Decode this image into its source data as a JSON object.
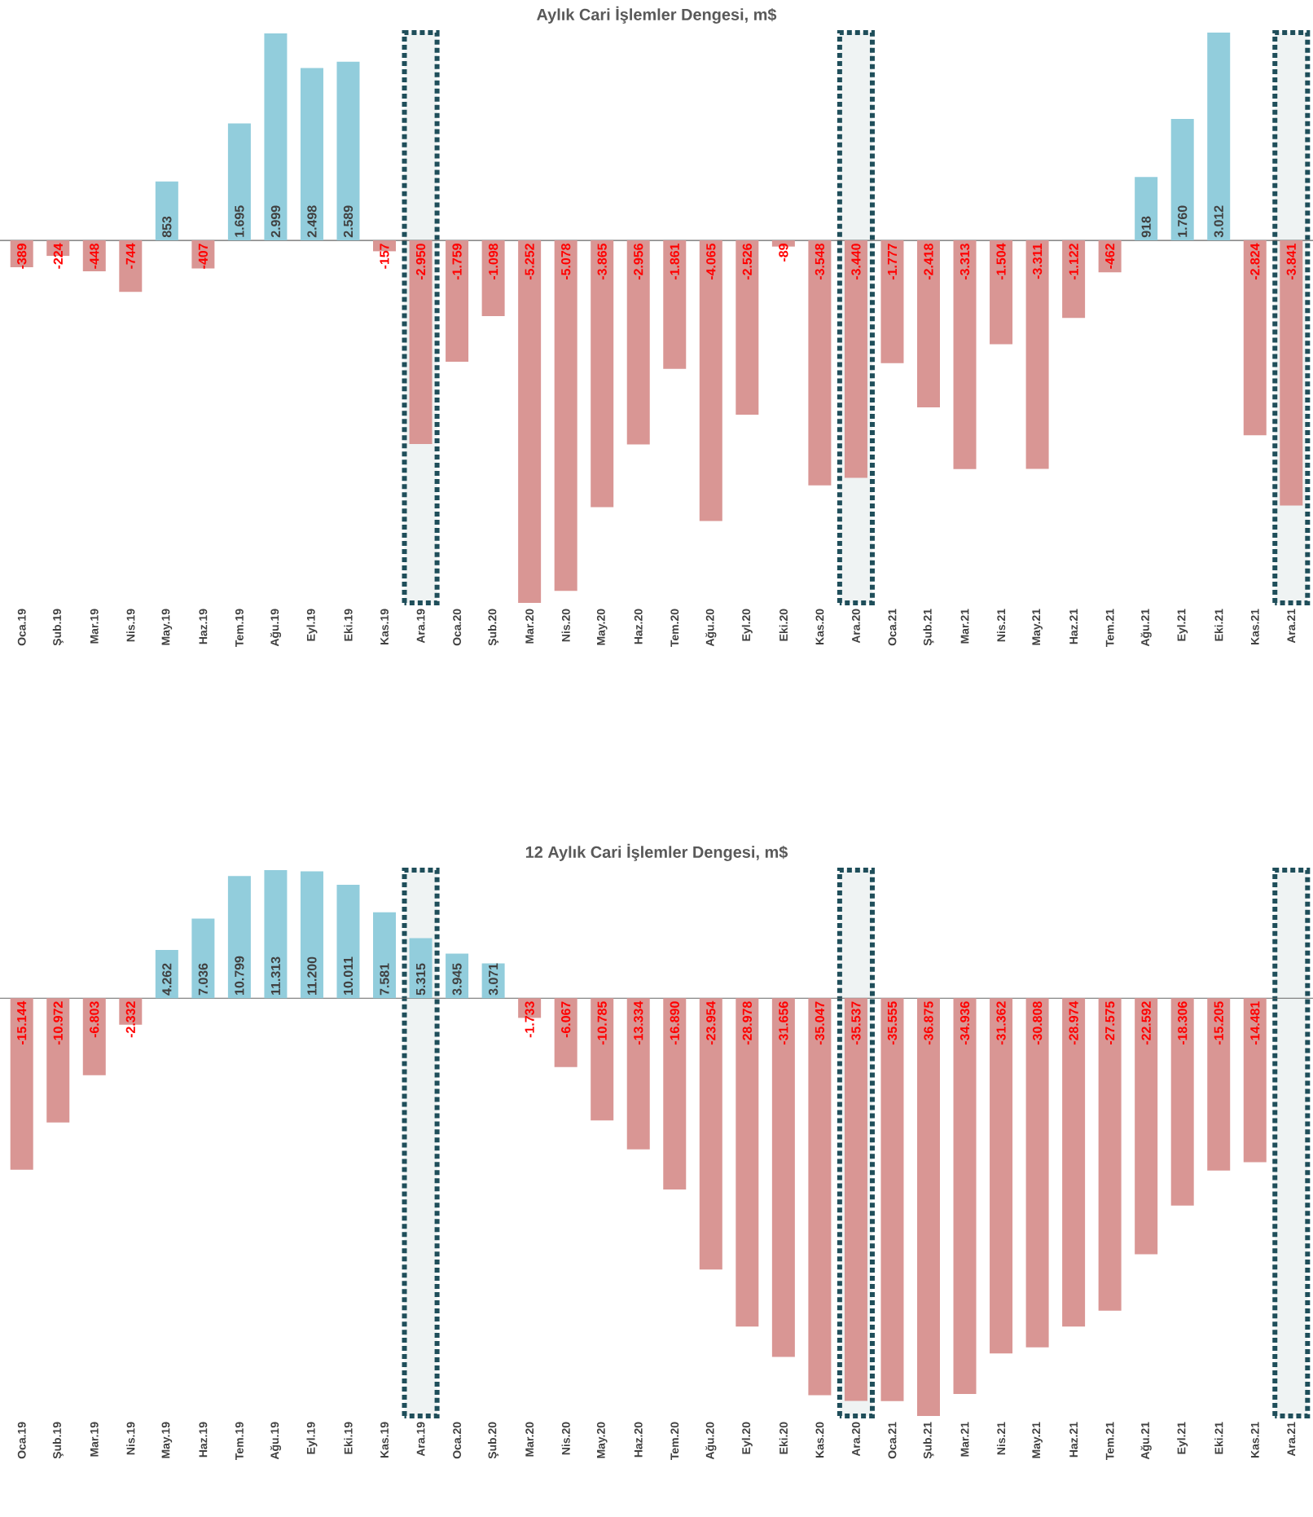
{
  "chart_data": [
    {
      "type": "bar",
      "title": "Aylık Cari İşlemler Dengesi, m$",
      "categories": [
        "Oca.19",
        "Şub.19",
        "Mar.19",
        "Nis.19",
        "May.19",
        "Haz.19",
        "Tem.19",
        "Ağu.19",
        "Eyl.19",
        "Eki.19",
        "Kas.19",
        "Ara.19",
        "Oca.20",
        "Şub.20",
        "Mar.20",
        "Nis.20",
        "May.20",
        "Haz.20",
        "Tem.20",
        "Ağu.20",
        "Eyl.20",
        "Eki.20",
        "Kas.20",
        "Ara.20",
        "Oca.21",
        "Şub.21",
        "Mar.21",
        "Nis.21",
        "May.21",
        "Haz.21",
        "Tem.21",
        "Ağu.21",
        "Eyl.21",
        "Eki.21",
        "Kas.21",
        "Ara.21"
      ],
      "values": [
        -389,
        -224,
        -448,
        -744,
        853,
        -407,
        1695,
        2999,
        2498,
        2589,
        -157,
        -2950,
        -1759,
        -1098,
        -5252,
        -5078,
        -3865,
        -2956,
        -1861,
        -4065,
        -2526,
        -89,
        -3548,
        -3440,
        -1777,
        -2418,
        -3313,
        -1504,
        -3311,
        -1122,
        -462,
        918,
        1760,
        3012,
        -2824,
        -3841
      ],
      "value_labels": [
        "-389",
        "-224",
        "-448",
        "-744",
        "853",
        "-407",
        "1.695",
        "2.999",
        "2.498",
        "2.589",
        "-157",
        "-2.950",
        "-1.759",
        "-1.098",
        "-5.252",
        "-5.078",
        "-3.865",
        "-2.956",
        "-1.861",
        "-4.065",
        "-2.526",
        "-89",
        "-3.548",
        "-3.440",
        "-1.777",
        "-2.418",
        "-3.313",
        "-1.504",
        "-3.311",
        "-1.122",
        "-462",
        "918",
        "1.760",
        "3.012",
        "-2.824",
        "-3.841"
      ],
      "colors": [
        "#d99694",
        "#d99694",
        "#d99694",
        "#d99694",
        "#92cddc",
        "#d99694",
        "#92cddc",
        "#92cddc",
        "#92cddc",
        "#92cddc",
        "#d99694",
        "#d99694",
        "#d99694",
        "#d99694",
        "#d99694",
        "#d99694",
        "#d99694",
        "#d99694",
        "#d99694",
        "#d99694",
        "#d99694",
        "#d99694",
        "#d99694",
        "#d99694",
        "#d99694",
        "#d99694",
        "#d99694",
        "#d99694",
        "#d99694",
        "#d99694",
        "#d99694",
        "#92cddc",
        "#92cddc",
        "#92cddc",
        "#d99694",
        "#d99694"
      ],
      "bands": [
        {
          "axis": "x",
          "from": "Ara.19",
          "to": "Ara.19",
          "color": "#1f4e5a"
        },
        {
          "axis": "x",
          "from": "Ara.20",
          "to": "Ara.20",
          "color": "#1f4e5a"
        },
        {
          "axis": "x",
          "from": "Ara.21",
          "to": "Ara.21",
          "color": "#1f4e5a"
        }
      ]
    },
    {
      "type": "bar",
      "title": "12 Aylık Cari İşlemler Dengesi, m$",
      "categories": [
        "Oca.19",
        "Şub.19",
        "Mar.19",
        "Nis.19",
        "May.19",
        "Haz.19",
        "Tem.19",
        "Ağu.19",
        "Eyl.19",
        "Eki.19",
        "Kas.19",
        "Ara.19",
        "Oca.20",
        "Şub.20",
        "Mar.20",
        "Nis.20",
        "May.20",
        "Haz.20",
        "Tem.20",
        "Ağu.20",
        "Eyl.20",
        "Eki.20",
        "Kas.20",
        "Ara.20",
        "Oca.21",
        "Şub.21",
        "Mar.21",
        "Nis.21",
        "May.21",
        "Haz.21",
        "Tem.21",
        "Ağu.21",
        "Eyl.21",
        "Eki.21",
        "Kas.21",
        "Ara.21"
      ],
      "values": [
        -15144,
        -10972,
        -6803,
        -2332,
        4262,
        7036,
        10799,
        11313,
        11200,
        10011,
        7581,
        5315,
        3945,
        3071,
        -1733,
        -6067,
        -10785,
        -13334,
        -16890,
        -23954,
        -28978,
        -31656,
        -35047,
        -35537,
        -35555,
        -36875,
        -34936,
        -31362,
        -30808,
        -28974,
        -27575,
        -22592,
        -18306,
        -15205,
        -14481,
        null
      ],
      "value_labels": [
        "-15.144",
        "-10.972",
        "-6.803",
        "-2.332",
        "4.262",
        "7.036",
        "10.799",
        "11.313",
        "11.200",
        "10.011",
        "7.581",
        "5.315",
        "3.945",
        "3.071",
        "-1.733",
        "-6.067",
        "-10.785",
        "-13.334",
        "-16.890",
        "-23.954",
        "-28.978",
        "-31.656",
        "-35.047",
        "-35.537",
        "-35.555",
        "-36.875",
        "-34.936",
        "-31.362",
        "-30.808",
        "-28.974",
        "-27.575",
        "-22.592",
        "-18.306",
        "-15.205",
        "-14.481",
        null
      ],
      "colors": [
        "#d99694",
        "#d99694",
        "#d99694",
        "#d99694",
        "#92cddc",
        "#92cddc",
        "#92cddc",
        "#92cddc",
        "#92cddc",
        "#92cddc",
        "#92cddc",
        "#92cddc",
        "#92cddc",
        "#92cddc",
        "#d99694",
        "#d99694",
        "#d99694",
        "#d99694",
        "#d99694",
        "#d99694",
        "#d99694",
        "#d99694",
        "#d99694",
        "#d99694",
        "#d99694",
        "#d99694",
        "#d99694",
        "#d99694",
        "#d99694",
        "#d99694",
        "#d99694",
        "#d99694",
        "#d99694",
        "#d99694",
        "#d99694",
        null
      ],
      "bands": [
        {
          "axis": "x",
          "from": "Ara.19",
          "to": "Ara.19",
          "color": "#1f4e5a"
        },
        {
          "axis": "x",
          "from": "Ara.20",
          "to": "Ara.20",
          "color": "#1f4e5a"
        },
        {
          "axis": "x",
          "from": "Ara.21",
          "to": "Ara.21",
          "color": "#1f4e5a"
        }
      ]
    }
  ]
}
